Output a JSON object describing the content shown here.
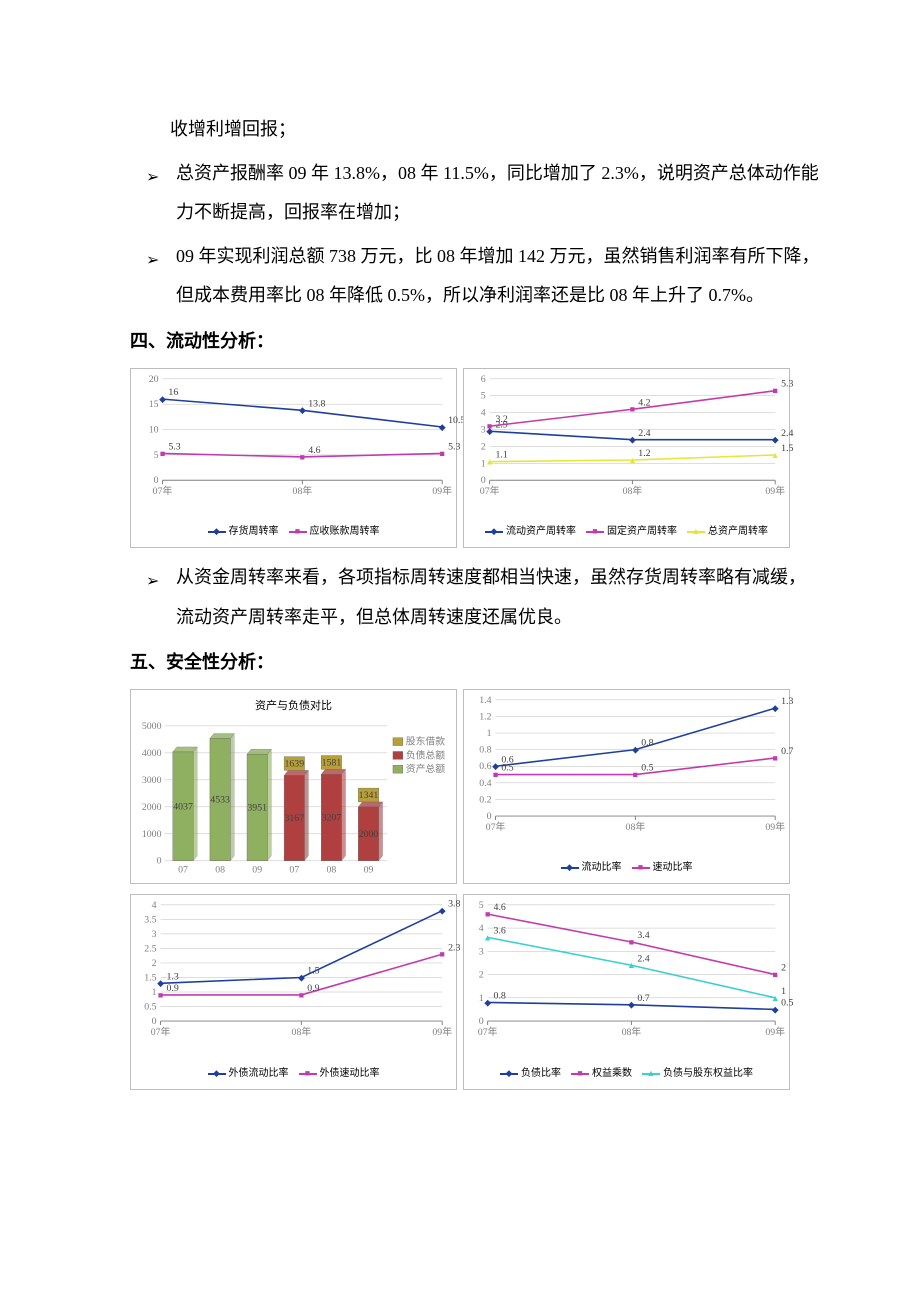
{
  "text": {
    "para1": "收增利增回报；",
    "bullet1": "总资产报酬率 09 年 13.8%，08 年 11.5%，同比增加了 2.3%，说明资产总体动作能力不断提高，回报率在增加；",
    "bullet2": "09 年实现利润总额 738 万元，比 08 年增加 142 万元，虽然销售利润率有所下降，但成本费用率比 08 年降低 0.5%，所以净利润率还是比 08 年上升了 0.7%。",
    "section4": "四、流动性分析：",
    "bullet3": "从资金周转率来看，各项指标周转速度都相当快速，虽然存货周转率略有减缓，流动资产周转率走平，但总体周转速度还属优良。",
    "section5": "五、安全性分析："
  },
  "colors": {
    "blue": "#1f3f9e",
    "magenta": "#c23ab0",
    "yellow": "#e6e63a",
    "teal": "#3ad0d0",
    "olive": "#b8a038",
    "red3d": "#b04040",
    "green3d": "#8fb060",
    "grid": "#bdbdbd",
    "border": "#bdbdbd",
    "axis": "#808080"
  },
  "chart_a": {
    "type": "line",
    "categories": [
      "07年",
      "08年",
      "09年"
    ],
    "ylim": [
      0,
      20
    ],
    "yticks": [
      0,
      5,
      10,
      15,
      20
    ],
    "series": [
      {
        "name": "存货周转率",
        "color": "#1f3f9e",
        "marker": "diamond",
        "values": [
          16,
          13.8,
          10.5
        ],
        "labels": [
          "16",
          "13.8",
          "10.5"
        ]
      },
      {
        "name": "应收账款周转率",
        "color": "#c23ab0",
        "marker": "square",
        "values": [
          5.3,
          4.6,
          5.3
        ],
        "labels": [
          "5.3",
          "4.6",
          "5.3"
        ]
      }
    ]
  },
  "chart_b": {
    "type": "line",
    "categories": [
      "07年",
      "08年",
      "09年"
    ],
    "ylim": [
      0,
      6
    ],
    "yticks": [
      0,
      1,
      2,
      3,
      4,
      5,
      6
    ],
    "series": [
      {
        "name": "流动资产周转率",
        "color": "#1f3f9e",
        "marker": "diamond",
        "values": [
          2.9,
          2.4,
          2.4
        ],
        "labels": [
          "2.9",
          "2.4",
          "2.4"
        ]
      },
      {
        "name": "固定资产周转率",
        "color": "#c23ab0",
        "marker": "square",
        "values": [
          3.2,
          4.2,
          5.3
        ],
        "labels": [
          "3.2",
          "4.2",
          "5.3"
        ]
      },
      {
        "name": "总资产周转率",
        "color": "#e6e63a",
        "marker": "triangle",
        "values": [
          1.1,
          1.2,
          1.5
        ],
        "labels": [
          "1.1",
          "1.2",
          "1.5"
        ]
      }
    ]
  },
  "chart_c": {
    "type": "bar3d",
    "title": "资产与负债对比",
    "categories": [
      "07",
      "08",
      "09",
      "07",
      "08",
      "09"
    ],
    "ylim": [
      0,
      5000
    ],
    "yticks": [
      0,
      1000,
      2000,
      3000,
      4000,
      5000
    ],
    "bars": [
      {
        "x": 0,
        "value": 4037,
        "label": "4037",
        "color": "#8fb060"
      },
      {
        "x": 1,
        "value": 4533,
        "label": "4533",
        "color": "#8fb060"
      },
      {
        "x": 2,
        "value": 3951,
        "label": "3951",
        "color": "#8fb060"
      },
      {
        "x": 3,
        "value": 3167,
        "label": "3167",
        "color": "#b04040",
        "cap": 1639,
        "cap_label": "1639",
        "cap_color": "#b8a038"
      },
      {
        "x": 4,
        "value": 3207,
        "label": "3207",
        "color": "#b04040",
        "cap": 1581,
        "cap_label": "1581",
        "cap_color": "#b8a038"
      },
      {
        "x": 5,
        "value": 2000,
        "label": "2000",
        "color": "#b04040",
        "cap": 1341,
        "cap_label": "1341",
        "cap_color": "#b8a038"
      }
    ],
    "legend": [
      {
        "name": "股东借款",
        "color": "#b8a038"
      },
      {
        "name": "负债总额",
        "color": "#b04040"
      },
      {
        "name": "资产总额",
        "color": "#8fb060"
      }
    ]
  },
  "chart_d": {
    "type": "line",
    "categories": [
      "07年",
      "08年",
      "09年"
    ],
    "ylim": [
      0,
      1.4
    ],
    "yticks": [
      0,
      0.2,
      0.4,
      0.6,
      0.8,
      1,
      1.2,
      1.4
    ],
    "series": [
      {
        "name": "流动比率",
        "color": "#1f3f9e",
        "marker": "diamond",
        "values": [
          0.6,
          0.8,
          1.3
        ],
        "labels": [
          "0.6",
          "0.8",
          "1.3"
        ]
      },
      {
        "name": "速动比率",
        "color": "#c23ab0",
        "marker": "square",
        "values": [
          0.5,
          0.5,
          0.7
        ],
        "labels": [
          "0.5",
          "0.5",
          "0.7"
        ]
      }
    ]
  },
  "chart_e": {
    "type": "line",
    "categories": [
      "07年",
      "08年",
      "09年"
    ],
    "ylim": [
      0,
      4
    ],
    "yticks": [
      0,
      0.5,
      1,
      1.5,
      2,
      2.5,
      3,
      3.5,
      4
    ],
    "series": [
      {
        "name": "外债流动比率",
        "color": "#1f3f9e",
        "marker": "diamond",
        "values": [
          1.3,
          1.5,
          3.8
        ],
        "labels": [
          "1.3",
          "1.5",
          "3.8"
        ]
      },
      {
        "name": "外债速动比率",
        "color": "#c23ab0",
        "marker": "square",
        "values": [
          0.9,
          0.9,
          2.3
        ],
        "labels": [
          "0.9",
          "0.9",
          "2.3"
        ]
      }
    ]
  },
  "chart_f": {
    "type": "line",
    "categories": [
      "07年",
      "08年",
      "09年"
    ],
    "ylim": [
      0,
      5
    ],
    "yticks": [
      0,
      1,
      2,
      3,
      4,
      5
    ],
    "series": [
      {
        "name": "负债比率",
        "color": "#1f3f9e",
        "marker": "diamond",
        "values": [
          0.8,
          0.7,
          0.5
        ],
        "labels": [
          "0.8",
          "0.7",
          "0.5"
        ]
      },
      {
        "name": "权益乘数",
        "color": "#c23ab0",
        "marker": "square",
        "values": [
          4.6,
          3.4,
          2
        ],
        "labels": [
          "4.6",
          "3.4",
          "2"
        ]
      },
      {
        "name": "负债与股东权益比率",
        "color": "#3ad0d0",
        "marker": "triangle",
        "values": [
          3.6,
          2.4,
          1
        ],
        "labels": [
          "3.6",
          "2.4",
          "1"
        ]
      }
    ]
  }
}
